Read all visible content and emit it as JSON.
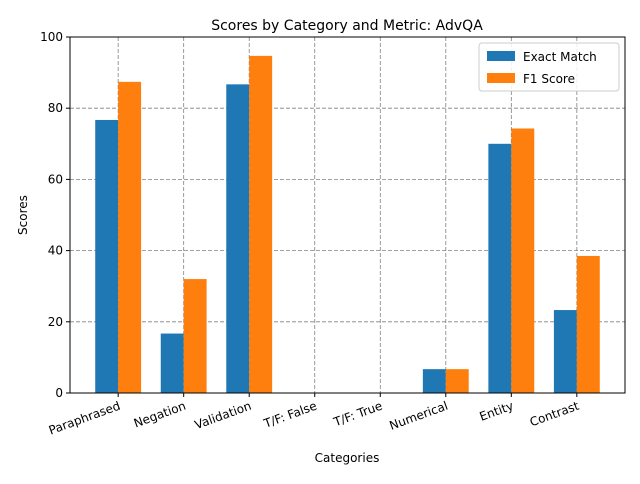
{
  "chart_data": {
    "type": "bar",
    "title": "Scores by Category and Metric: AdvQA",
    "xlabel": "Categories",
    "ylabel": "Scores",
    "categories": [
      "Paraphrased",
      "Negation",
      "Validation",
      "T/F: False",
      "T/F: True",
      "Numerical",
      "Entity",
      "Contrast"
    ],
    "series": [
      {
        "name": "Exact Match",
        "color": "#1f77b4",
        "values": [
          76.7,
          16.7,
          86.7,
          0,
          0,
          6.7,
          70.0,
          23.3
        ]
      },
      {
        "name": "F1 Score",
        "color": "#ff7f0e",
        "values": [
          87.4,
          32.0,
          94.7,
          0,
          0,
          6.7,
          74.3,
          38.5
        ]
      }
    ],
    "ylim": [
      0,
      100
    ],
    "yticks": [
      0,
      20,
      40,
      60,
      80,
      100
    ],
    "grid": true,
    "legend_position": "top-right"
  }
}
